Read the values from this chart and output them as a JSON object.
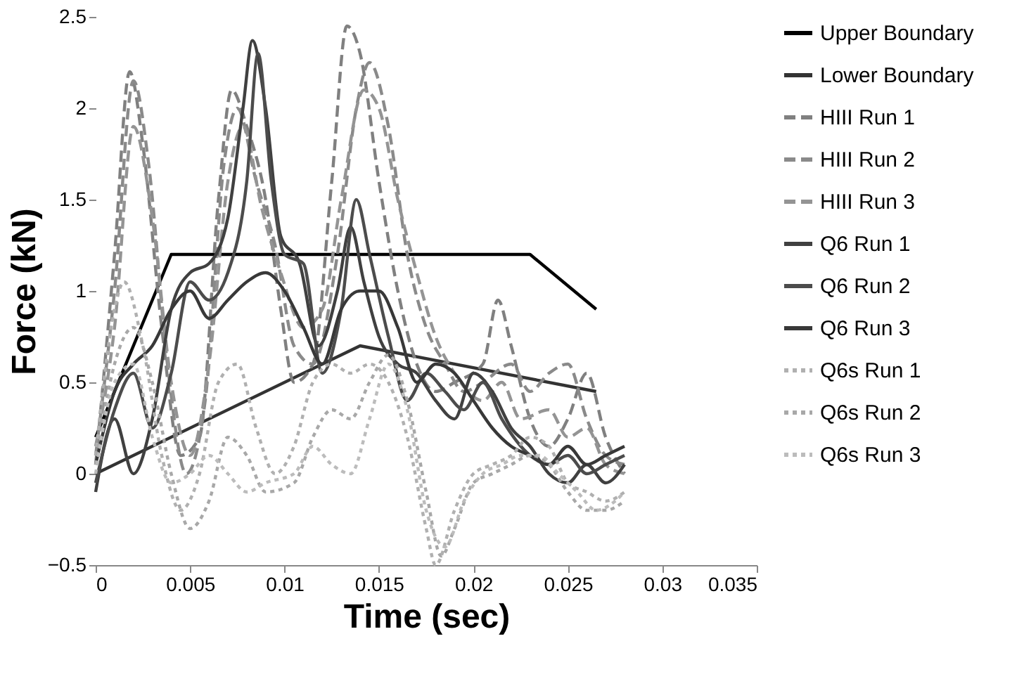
{
  "chart_data": {
    "type": "line",
    "xlabel": "Time (sec)",
    "ylabel": "Force (kN)",
    "xlim": [
      0,
      0.035
    ],
    "xticks": [
      0,
      0.005,
      0.01,
      0.015,
      0.02,
      0.025,
      0.03,
      0.035
    ],
    "ylim": [
      -0.5,
      2.5
    ],
    "yticks": [
      -0.5,
      0,
      0.5,
      1,
      1.5,
      2,
      2.5
    ],
    "grid": false,
    "legend": "right",
    "marker": "none",
    "series": [
      {
        "name": "Upper Boundary",
        "color": "#000000",
        "line_style": "solid",
        "x": [
          0,
          0.004,
          0.023,
          0.0265
        ],
        "values": [
          0.2,
          1.2,
          1.2,
          0.9
        ]
      },
      {
        "name": "Lower Boundary",
        "color": "#333333",
        "line_style": "solid",
        "x": [
          0,
          0.014,
          0.0265
        ],
        "values": [
          0,
          0.7,
          0.45
        ]
      },
      {
        "name": "HIII Run 1",
        "color": "#808080",
        "line_style": "dashed",
        "x": [
          0,
          0.001,
          0.0018,
          0.0025,
          0.0035,
          0.0045,
          0.0055,
          0.0065,
          0.0072,
          0.008,
          0.009,
          0.0098,
          0.0105,
          0.0115,
          0.0125,
          0.0133,
          0.014,
          0.015,
          0.016,
          0.017,
          0.018,
          0.019,
          0.0205,
          0.0213,
          0.022,
          0.023,
          0.024,
          0.025,
          0.026,
          0.027,
          0.028
        ],
        "values": [
          0.05,
          1.2,
          2.2,
          1.8,
          0.8,
          0.1,
          0.2,
          1.5,
          2.1,
          1.9,
          1.5,
          0.9,
          0.5,
          0.6,
          1.6,
          2.45,
          2.3,
          1.6,
          1.0,
          0.6,
          0.45,
          0.5,
          0.6,
          0.95,
          0.7,
          0.3,
          0.15,
          0.3,
          0.55,
          0.2,
          0.0
        ]
      },
      {
        "name": "HIII Run 2",
        "color": "#8a8a8a",
        "line_style": "dashed",
        "x": [
          0,
          0.001,
          0.002,
          0.0028,
          0.0038,
          0.0048,
          0.0058,
          0.0068,
          0.0075,
          0.0085,
          0.0095,
          0.0105,
          0.0115,
          0.0128,
          0.0138,
          0.0145,
          0.0155,
          0.0165,
          0.0175,
          0.0185,
          0.0195,
          0.0205,
          0.022,
          0.023,
          0.024,
          0.025,
          0.026,
          0.027,
          0.028
        ],
        "values": [
          0.1,
          1.0,
          2.15,
          1.7,
          0.6,
          0.0,
          0.4,
          1.7,
          2.0,
          1.6,
          1.25,
          0.7,
          0.6,
          1.2,
          2.0,
          2.25,
          1.9,
          1.2,
          0.8,
          0.6,
          0.45,
          0.5,
          0.6,
          0.45,
          0.55,
          0.6,
          0.3,
          0.1,
          0.05
        ]
      },
      {
        "name": "HIII Run 3",
        "color": "#949494",
        "line_style": "dashed",
        "x": [
          0,
          0.001,
          0.002,
          0.003,
          0.004,
          0.005,
          0.006,
          0.007,
          0.0078,
          0.0088,
          0.0098,
          0.011,
          0.012,
          0.013,
          0.0142,
          0.015,
          0.016,
          0.017,
          0.018,
          0.019,
          0.0205,
          0.0215,
          0.0225,
          0.024,
          0.025,
          0.026,
          0.027,
          0.028
        ],
        "values": [
          0.15,
          0.8,
          1.9,
          1.4,
          0.5,
          0.1,
          0.6,
          1.6,
          1.9,
          1.45,
          1.1,
          0.8,
          0.9,
          1.5,
          2.1,
          2.0,
          1.5,
          1.1,
          0.75,
          0.55,
          0.4,
          0.5,
          0.3,
          0.35,
          0.2,
          0.25,
          0.05,
          0.0
        ]
      },
      {
        "name": "Q6 Run 1",
        "color": "#404040",
        "line_style": "solid",
        "x": [
          0,
          0.001,
          0.002,
          0.003,
          0.004,
          0.005,
          0.006,
          0.007,
          0.0078,
          0.0083,
          0.009,
          0.0098,
          0.0108,
          0.0118,
          0.0128,
          0.0135,
          0.0142,
          0.015,
          0.016,
          0.017,
          0.018,
          0.019,
          0.02,
          0.021,
          0.022,
          0.023,
          0.024,
          0.025,
          0.026,
          0.027,
          0.028
        ],
        "values": [
          -0.1,
          0.3,
          0.0,
          0.3,
          0.9,
          1.1,
          1.15,
          1.4,
          2.0,
          2.37,
          2.0,
          1.3,
          1.15,
          0.7,
          1.0,
          1.35,
          1.05,
          0.75,
          0.6,
          0.55,
          0.4,
          0.3,
          0.55,
          0.45,
          0.25,
          0.15,
          0.0,
          -0.05,
          0.05,
          -0.05,
          0.05
        ]
      },
      {
        "name": "Q6 Run 2",
        "color": "#4c4c4c",
        "line_style": "solid",
        "x": [
          0,
          0.001,
          0.002,
          0.003,
          0.004,
          0.005,
          0.006,
          0.007,
          0.008,
          0.0086,
          0.0093,
          0.01,
          0.011,
          0.012,
          0.013,
          0.0138,
          0.0145,
          0.0155,
          0.0165,
          0.0175,
          0.0185,
          0.0195,
          0.0205,
          0.0215,
          0.023,
          0.024,
          0.025,
          0.026,
          0.027,
          0.028
        ],
        "values": [
          -0.05,
          0.35,
          0.55,
          0.25,
          0.55,
          1.05,
          0.95,
          1.1,
          1.6,
          2.3,
          1.6,
          1.2,
          1.15,
          0.55,
          0.9,
          1.5,
          1.2,
          0.75,
          0.4,
          0.55,
          0.45,
          0.35,
          0.5,
          0.3,
          0.1,
          0.05,
          0.1,
          0.0,
          0.05,
          0.1
        ]
      },
      {
        "name": "Q6 Run 3",
        "color": "#383838",
        "line_style": "solid",
        "x": [
          0,
          0.001,
          0.002,
          0.003,
          0.004,
          0.005,
          0.006,
          0.007,
          0.008,
          0.009,
          0.01,
          0.011,
          0.012,
          0.013,
          0.014,
          0.015,
          0.016,
          0.017,
          0.018,
          0.019,
          0.02,
          0.021,
          0.022,
          0.023,
          0.024,
          0.025,
          0.026,
          0.027,
          0.028
        ],
        "values": [
          0.05,
          0.45,
          0.6,
          0.7,
          0.9,
          1.0,
          0.85,
          0.95,
          1.05,
          1.1,
          1.0,
          0.8,
          0.6,
          0.9,
          1.0,
          1.0,
          0.8,
          0.5,
          0.6,
          0.55,
          0.4,
          0.25,
          0.15,
          0.1,
          0.05,
          0.15,
          0.05,
          0.1,
          0.15
        ]
      },
      {
        "name": "Q6s Run 1",
        "color": "#b0b0b0",
        "line_style": "dotted",
        "x": [
          0,
          0.001,
          0.0015,
          0.0025,
          0.0035,
          0.0045,
          0.0055,
          0.0065,
          0.0075,
          0.0085,
          0.0095,
          0.0105,
          0.0115,
          0.0125,
          0.0135,
          0.0145,
          0.0155,
          0.0165,
          0.0175,
          0.018,
          0.019,
          0.02,
          0.021,
          0.022,
          0.023,
          0.024,
          0.025,
          0.026,
          0.027,
          0.028
        ],
        "values": [
          0.1,
          0.9,
          1.05,
          0.7,
          0.1,
          -0.2,
          0.0,
          0.5,
          0.6,
          0.25,
          0.0,
          0.15,
          0.5,
          0.6,
          0.55,
          0.6,
          0.5,
          0.2,
          -0.3,
          -0.5,
          -0.2,
          0.0,
          0.05,
          0.1,
          0.2,
          0.15,
          -0.05,
          -0.1,
          -0.15,
          -0.1
        ]
      },
      {
        "name": "Q6s Run 2",
        "color": "#a8a8a8",
        "line_style": "dotted",
        "x": [
          0,
          0.001,
          0.002,
          0.003,
          0.004,
          0.005,
          0.006,
          0.007,
          0.008,
          0.009,
          0.0105,
          0.0115,
          0.0125,
          0.0135,
          0.0145,
          0.0155,
          0.0165,
          0.0175,
          0.0183,
          0.019,
          0.02,
          0.021,
          0.022,
          0.023,
          0.024,
          0.025,
          0.026,
          0.027,
          0.028
        ],
        "values": [
          0.05,
          0.6,
          0.8,
          0.5,
          0.0,
          -0.3,
          -0.15,
          0.2,
          0.1,
          -0.1,
          -0.05,
          0.2,
          0.35,
          0.3,
          0.5,
          0.65,
          0.4,
          -0.1,
          -0.45,
          -0.3,
          -0.05,
          0.0,
          0.05,
          0.1,
          0.05,
          -0.1,
          -0.2,
          -0.2,
          -0.15
        ]
      },
      {
        "name": "Q6s Run 3",
        "color": "#bcbcbc",
        "line_style": "dotted",
        "x": [
          0,
          0.001,
          0.002,
          0.003,
          0.004,
          0.005,
          0.006,
          0.007,
          0.008,
          0.009,
          0.0105,
          0.0115,
          0.0125,
          0.0135,
          0.0145,
          0.0155,
          0.0165,
          0.0175,
          0.0185,
          0.0195,
          0.0205,
          0.0215,
          0.0225,
          0.0235,
          0.0245,
          0.0255,
          0.0265,
          0.0275,
          0.028
        ],
        "values": [
          0.0,
          0.5,
          0.6,
          0.2,
          -0.05,
          0.0,
          0.1,
          0.0,
          -0.1,
          -0.05,
          0.0,
          0.15,
          0.05,
          0.0,
          0.3,
          0.6,
          0.35,
          -0.2,
          -0.4,
          -0.15,
          0.0,
          0.05,
          0.1,
          0.1,
          0.0,
          -0.1,
          -0.2,
          -0.15,
          -0.1
        ]
      }
    ]
  }
}
